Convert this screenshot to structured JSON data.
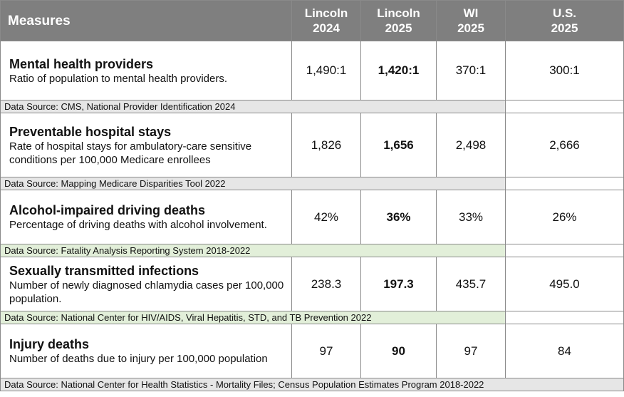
{
  "table": {
    "headers": {
      "measures": "Measures",
      "columns": [
        {
          "line1": "Lincoln",
          "line2": "2024"
        },
        {
          "line1": "Lincoln",
          "line2": "2025"
        },
        {
          "line1": "WI",
          "line2": "2025"
        },
        {
          "line1": "U.S.",
          "line2": "2025"
        }
      ]
    },
    "rows": [
      {
        "title": "Mental health providers",
        "description": "Ratio of population to mental health providers.",
        "values": [
          "1,490:1",
          "1,420:1",
          "370:1",
          "300:1"
        ],
        "source": "Data Source: CMS, National Provider Identification 2024"
      },
      {
        "title": "Preventable hospital stays",
        "description": "Rate of hospital stays for ambulatory-care sensitive conditions per 100,000 Medicare enrollees",
        "values": [
          "1,826",
          "1,656",
          "2,498",
          "2,666"
        ],
        "source": "Data Source: Mapping Medicare Disparities Tool 2022"
      },
      {
        "title": "Alcohol-impaired driving deaths",
        "description": "Percentage of driving deaths with alcohol involvement.",
        "values": [
          "42%",
          "36%",
          "33%",
          "26%"
        ],
        "source": "Data Source: Fatality Analysis Reporting System 2018-2022"
      },
      {
        "title": "Sexually transmitted infections",
        "description": "Number of newly diagnosed chlamydia cases per 100,000 population.",
        "values": [
          "238.3",
          "197.3",
          "435.7",
          "495.0"
        ],
        "source": "Data Source: National Center for HIV/AIDS, Viral Hepatitis, STD, and TB Prevention 2022"
      },
      {
        "title": "Injury deaths",
        "description": "Number of deaths due to injury per 100,000 population",
        "values": [
          "97",
          "90",
          "97",
          "84"
        ],
        "source": "Data Source: National Center for Health Statistics - Mortality Files; Census Population Estimates Program 2018-2022"
      }
    ]
  },
  "colors": {
    "header_bg": "#7f7f7f",
    "source_gray": "#e6e6e6",
    "source_green": "#e2efd9"
  }
}
